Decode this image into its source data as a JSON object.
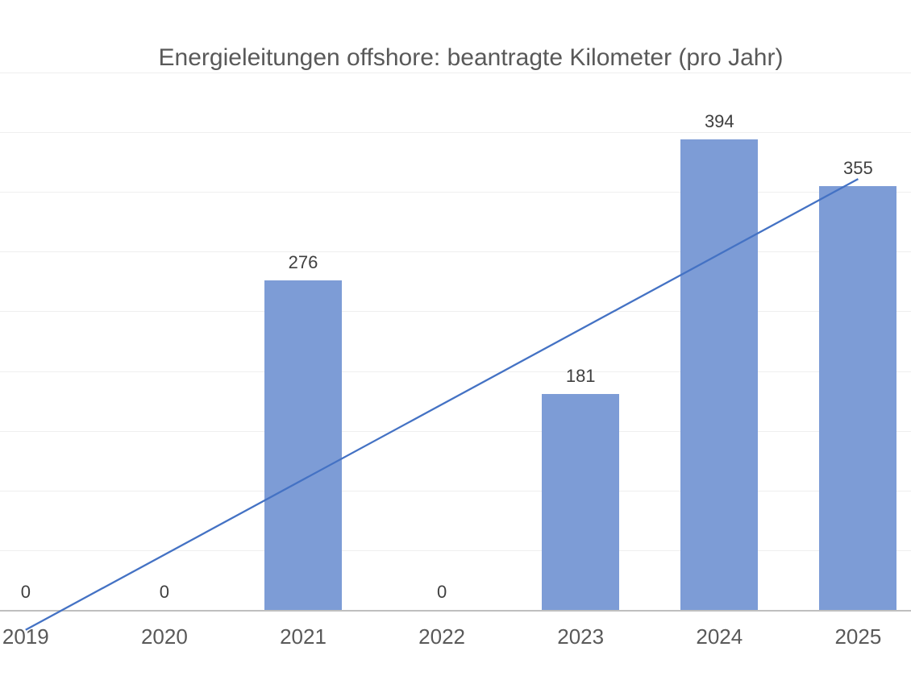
{
  "chart_data": {
    "type": "bar",
    "title": "Energieleitungen offshore: beantragte Kilometer (pro Jahr)",
    "categories": [
      "2019",
      "2020",
      "2021",
      "2022",
      "2023",
      "2024",
      "2025"
    ],
    "values": [
      0,
      0,
      276,
      0,
      181,
      394,
      355
    ],
    "xlabel": "",
    "ylabel": "",
    "ylim": [
      0,
      450
    ],
    "gridline_step": 50,
    "grid": true,
    "legend": "none",
    "y_axis_labels_visible": false,
    "data_labels_visible": true,
    "trendline": {
      "type": "linear",
      "start_category": "2019",
      "end_category": "2025",
      "start_value": -16,
      "end_value": 361
    }
  },
  "colors": {
    "background": "#FFFFFF",
    "bar_fill": "#7D9CD6",
    "trendline": "#4472C4",
    "gridline": "#EFEFEF",
    "axis_line": "#BFBFBF",
    "title_text": "#595959",
    "tick_text": "#595959",
    "data_label_text": "#404040"
  }
}
